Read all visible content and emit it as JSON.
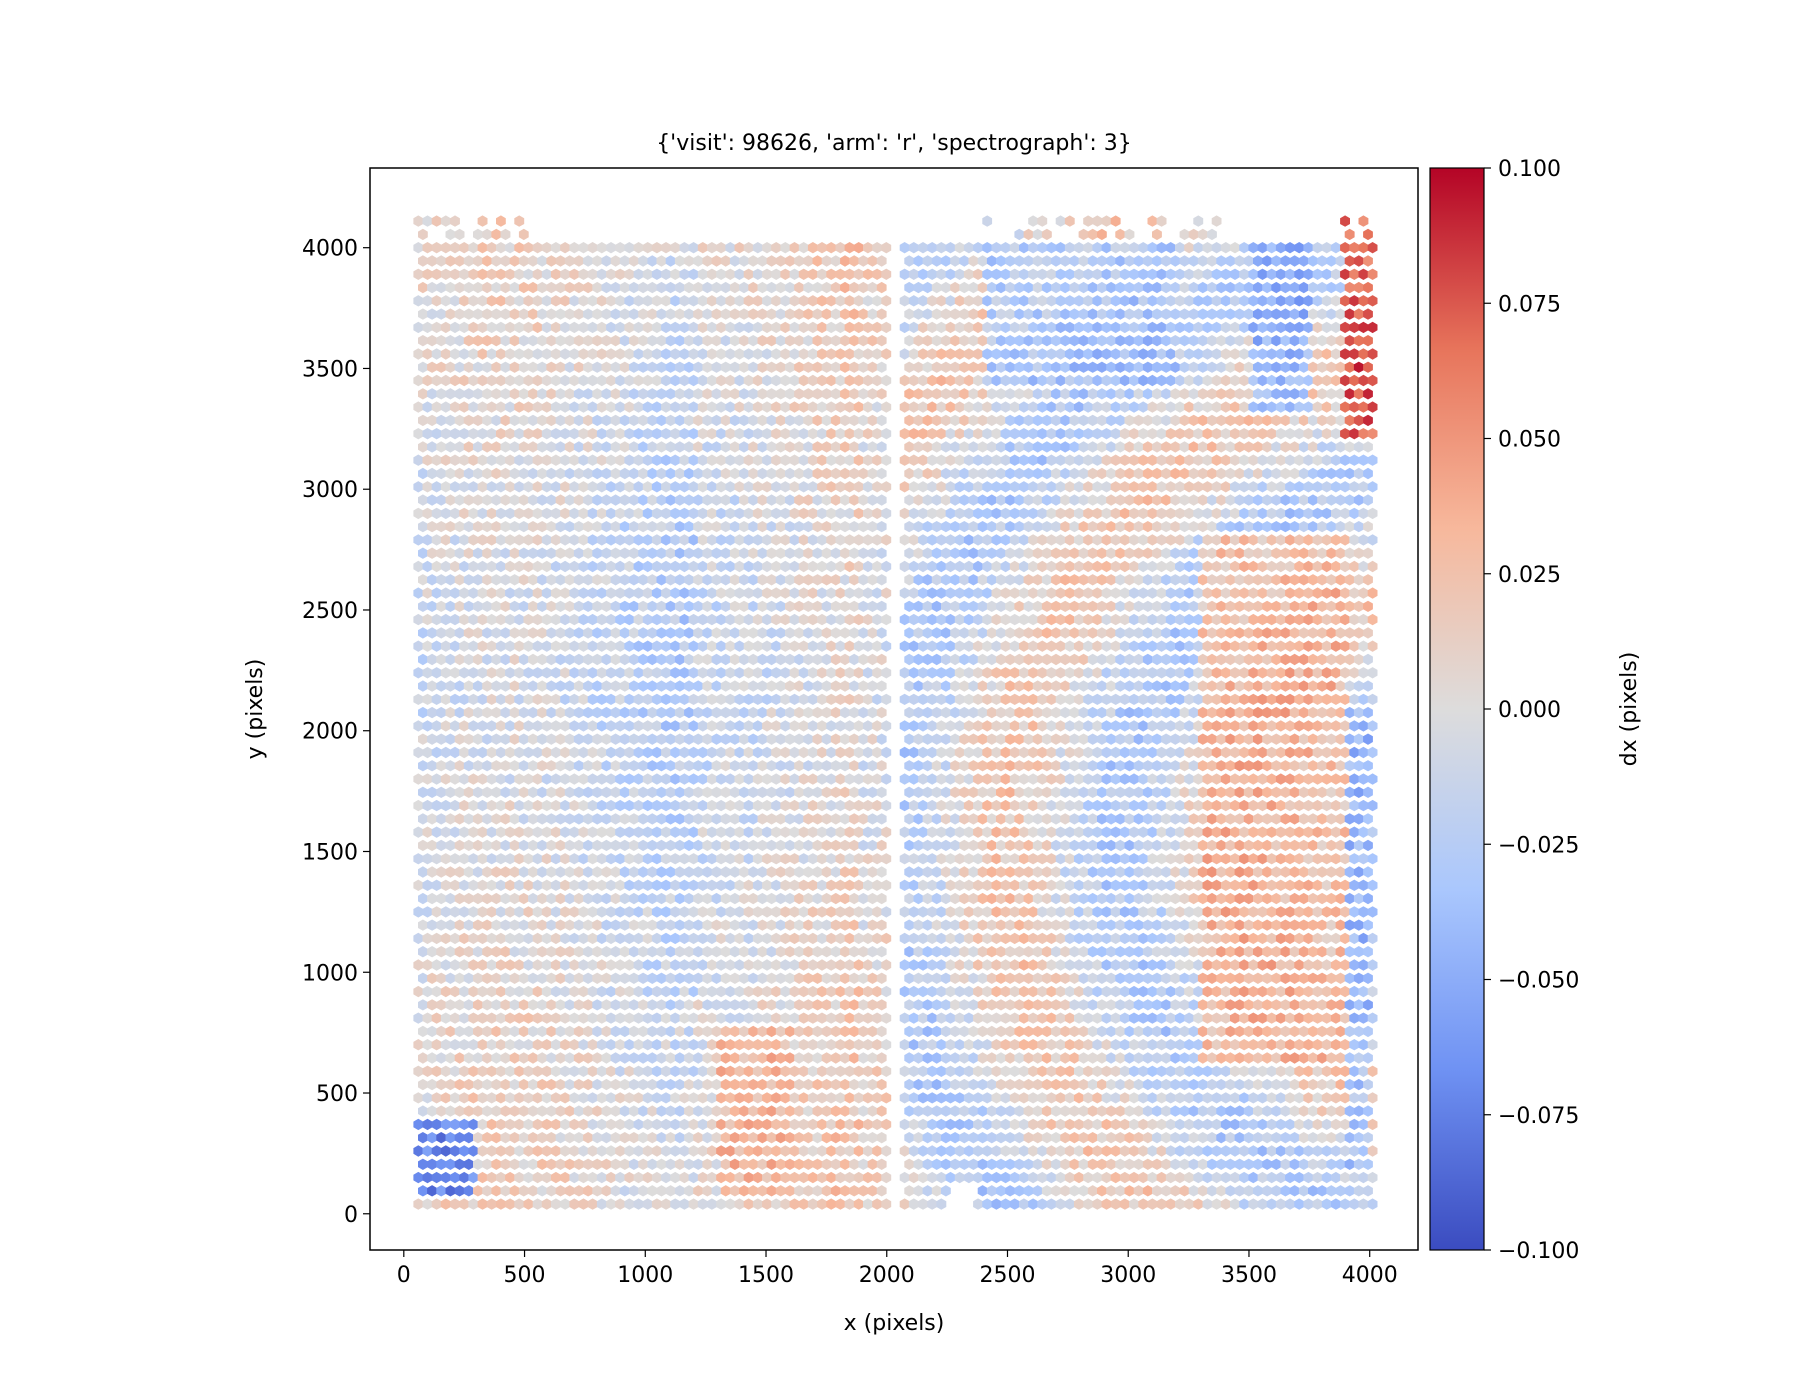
{
  "chart_data": {
    "type": "heatmap",
    "subtype": "hexbin",
    "title": "{'visit': 98626, 'arm': 'r', 'spectrograph': 3}",
    "xlabel": "x (pixels)",
    "ylabel": "y (pixels)",
    "xlim": [
      -140,
      4200
    ],
    "ylim": [
      -150,
      4330
    ],
    "x_ticks": [
      0,
      500,
      1000,
      1500,
      2000,
      2500,
      3000,
      3500,
      4000
    ],
    "y_ticks": [
      0,
      500,
      1000,
      1500,
      2000,
      2500,
      3000,
      3500,
      4000
    ],
    "x_tick_labels": [
      "0",
      "500",
      "1000",
      "1500",
      "2000",
      "2500",
      "3000",
      "3500",
      "4000"
    ],
    "y_tick_labels": [
      "0",
      "500",
      "1000",
      "1500",
      "2000",
      "2500",
      "3000",
      "3500",
      "4000"
    ],
    "colormap": "coolwarm",
    "colorbar": {
      "label": "dx (pixels)",
      "range": [
        -0.1,
        0.1
      ],
      "ticks": [
        0.1,
        0.075,
        0.05,
        0.025,
        0.0,
        -0.025,
        -0.05,
        -0.075,
        -0.1
      ],
      "tick_labels": [
        "0.100",
        "0.075",
        "0.050",
        "0.025",
        "0.000",
        "−0.025",
        "−0.050",
        "−0.075",
        "−0.100"
      ],
      "colors": [
        "#3b4cc0",
        "#6f92f3",
        "#aac7fd",
        "#dddcdc",
        "#f7b89c",
        "#e7745b",
        "#b40426"
      ]
    },
    "data_extent": {
      "x": [
        60,
        4020
      ],
      "y": [
        40,
        4120
      ]
    },
    "gaps": [
      {
        "x_range": [
          2000,
          2070
        ],
        "y_range": [
          0,
          4000
        ]
      },
      {
        "x_range": [
          2260,
          2360
        ],
        "y_range": [
          0,
          120
        ]
      }
    ],
    "regions": [
      {
        "description": "strong positive dx",
        "x_range": [
          3880,
          4020
        ],
        "y_range": [
          3200,
          4120
        ],
        "dx": 0.1
      },
      {
        "description": "strong negative dx",
        "x_range": [
          60,
          300
        ],
        "y_range": [
          60,
          400
        ],
        "dx": -0.1
      },
      {
        "description": "negative dx band",
        "x_range": [
          3500,
          3760
        ],
        "y_range": [
          3300,
          4000
        ],
        "dx": -0.06
      },
      {
        "description": "negative dx",
        "x_range": [
          2400,
          3200
        ],
        "y_range": [
          3400,
          4000
        ],
        "dx": -0.04
      },
      {
        "description": "negative right edge",
        "x_range": [
          3900,
          4010
        ],
        "y_range": [
          200,
          2100
        ],
        "dx": -0.05
      },
      {
        "description": "positive arc",
        "x_range": [
          3300,
          3900
        ],
        "y_range": [
          600,
          2800
        ],
        "dx": 0.04
      },
      {
        "description": "positive column",
        "x_range": [
          1300,
          1600
        ],
        "y_range": [
          50,
          800
        ],
        "dx": 0.04
      }
    ]
  }
}
